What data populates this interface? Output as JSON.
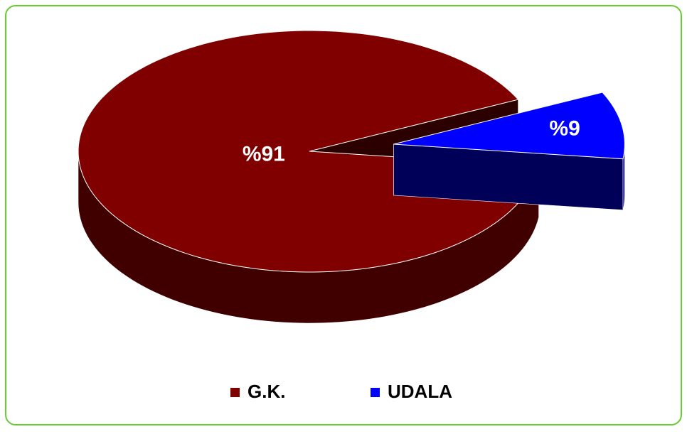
{
  "chart_data": {
    "type": "pie",
    "categories": [
      "G.K.",
      "UDALA"
    ],
    "values": [
      91,
      9
    ],
    "value_labels": [
      "%91",
      "%9"
    ],
    "colors": [
      "#800000",
      "#0000ff"
    ],
    "explode": [
      false,
      true
    ],
    "legend": "bottom"
  }
}
